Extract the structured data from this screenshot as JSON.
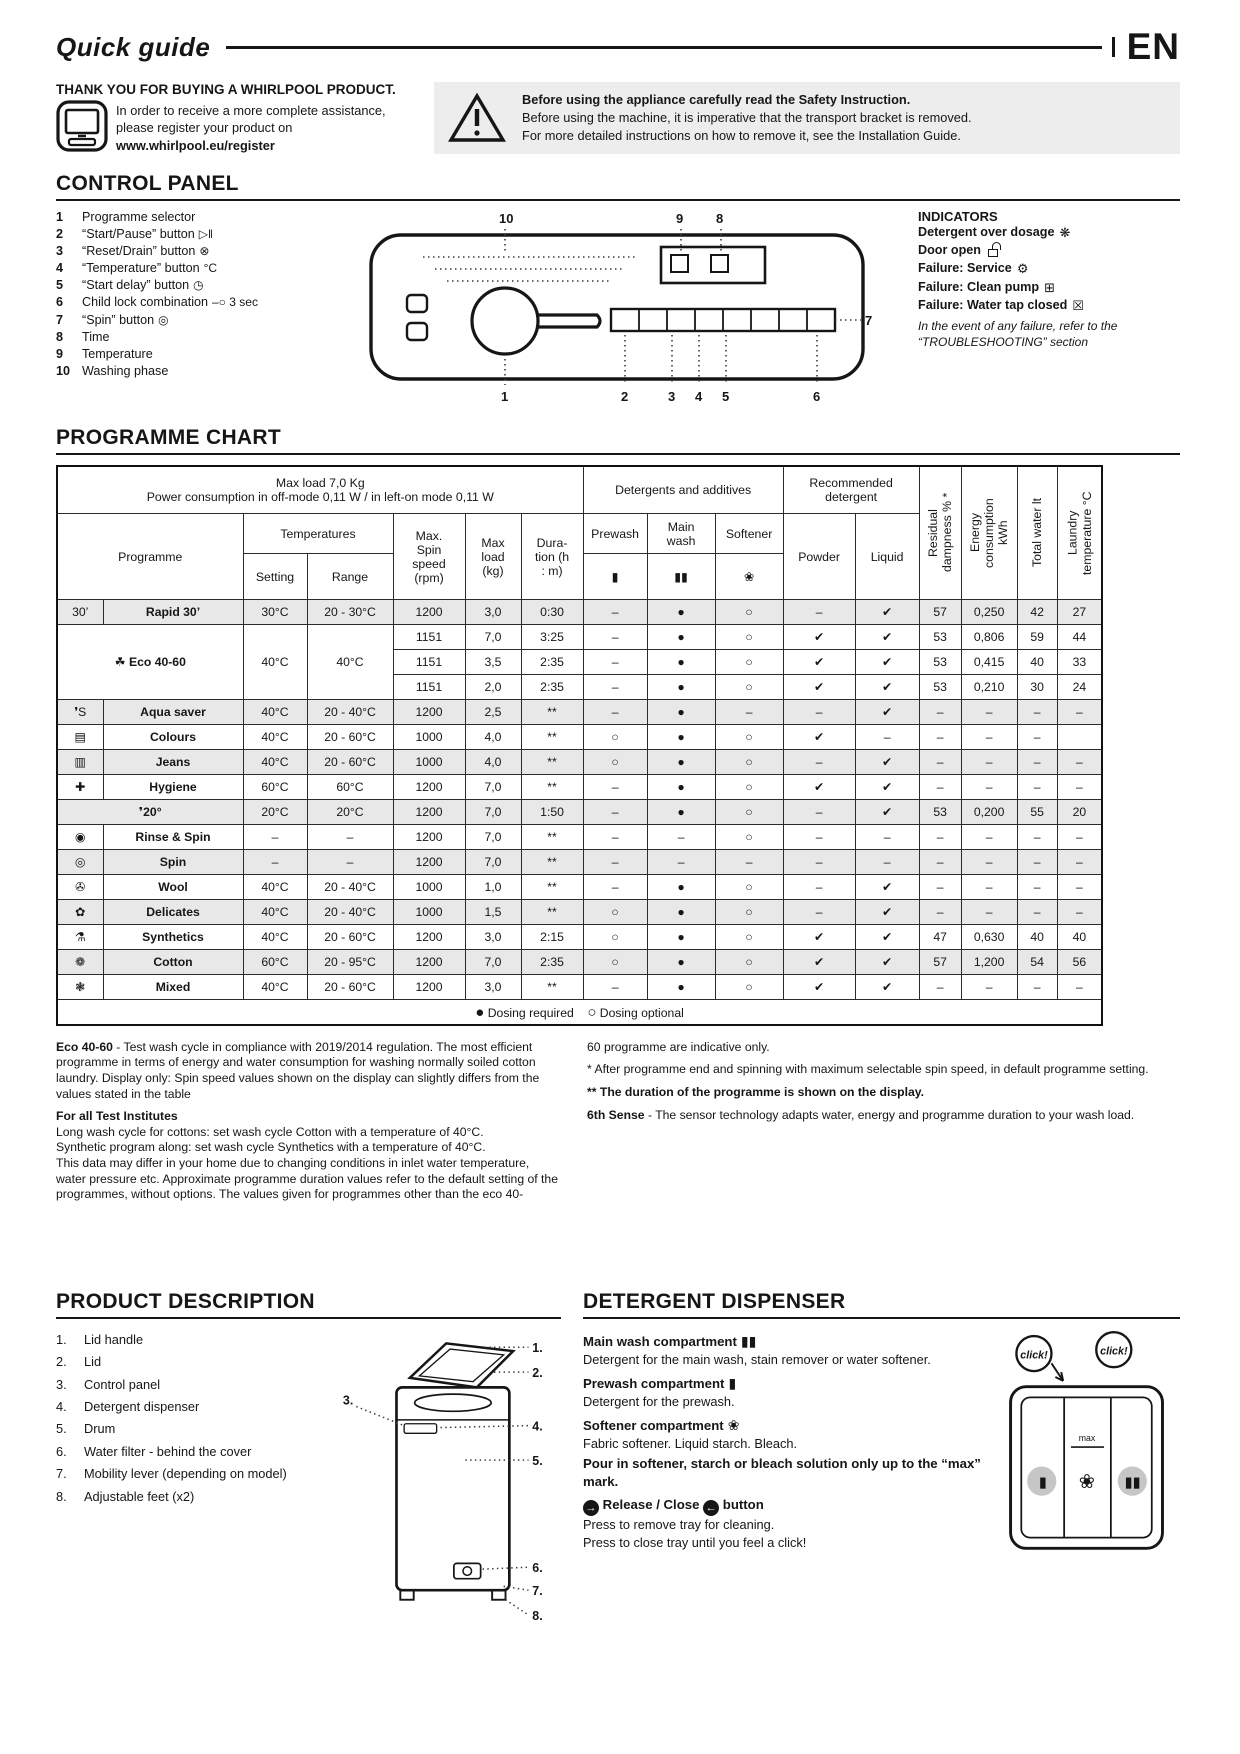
{
  "header": {
    "title": "Quick guide",
    "lang": "EN"
  },
  "intro": {
    "title": "THANK YOU FOR BUYING A WHIRLPOOL PRODUCT.",
    "line1": "In order to receive a more complete assistance,",
    "line2": "please register your product on",
    "url": "www.whirlpool.eu/register"
  },
  "warning": {
    "line1": "Before using the appliance carefully read the Safety Instruction.",
    "line2": "Before using the machine, it is imperative that the transport bracket is removed.",
    "line3": "For more detailed instructions on how to remove it, see the Installation Guide."
  },
  "control_panel": {
    "heading": "CONTROL PANEL",
    "items": [
      {
        "num": "1",
        "label": "Programme selector",
        "icon": ""
      },
      {
        "num": "2",
        "label": "“Start/Pause” button",
        "icon": "▷‖"
      },
      {
        "num": "3",
        "label": "“Reset/Drain” button",
        "icon": "⊗"
      },
      {
        "num": "4",
        "label": "“Temperature” button",
        "icon": "°C"
      },
      {
        "num": "5",
        "label": "“Start delay” button",
        "icon": "◷"
      },
      {
        "num": "6",
        "label": "Child lock combination",
        "icon": "–○ 3 sec"
      },
      {
        "num": "7",
        "label": "“Spin” button",
        "icon": "◎"
      },
      {
        "num": "8",
        "label": "Time",
        "icon": ""
      },
      {
        "num": "9",
        "label": "Temperature",
        "icon": ""
      },
      {
        "num": "10",
        "label": "Washing phase",
        "icon": ""
      }
    ],
    "callouts": [
      "1",
      "2",
      "3",
      "4",
      "5",
      "6",
      "7",
      "8",
      "9",
      "10"
    ],
    "indicators": {
      "heading": "INDICATORS",
      "items": [
        {
          "label": "Detergent over dosage",
          "icon": "❋"
        },
        {
          "label": "Door open",
          "icon": "LOCK"
        },
        {
          "label": "Failure: Service",
          "icon": "⚙"
        },
        {
          "label": "Failure: Clean pump",
          "icon": "⊞"
        },
        {
          "label": "Failure: Water tap closed",
          "icon": "☒"
        }
      ],
      "note1": "In the event of any failure, refer to the",
      "note2": "“TROUBLESHOOTING” section"
    }
  },
  "programme_chart": {
    "heading": "PROGRAMME CHART",
    "top_header_line1": "Max load 7,0 Kg",
    "top_header_line2": "Power consumption in off-mode 0,11 W / in left-on mode 0,11 W",
    "group_detergents": "Detergents and additives",
    "group_recommended": "Recommended\ndetergent",
    "col_programme": "Programme",
    "col_temperatures": "Temperatures",
    "col_setting": "Setting",
    "col_range": "Range",
    "col_spin": "Max.\nSpin\nspeed\n(rpm)",
    "col_load": "Max\nload\n(kg)",
    "col_duration": "Dura-\ntion (h\n: m)",
    "col_prewash": "Prewash",
    "col_main_wash": "Main\nwash",
    "col_softener": "Softener",
    "col_powder": "Powder",
    "col_liquid": "Liquid",
    "col_residual": "Residual\ndampness % *",
    "col_energy": "Energy\nconsumption\nkWh",
    "col_water": "Total water lt",
    "col_laundry": "Laundry\ntemperature °C",
    "icon_prewash": "▮",
    "icon_main_wash": "▮▮",
    "icon_softener": "❀",
    "legend_required": "Dosing required",
    "legend_optional": "Dosing optional",
    "rows": [
      {
        "icon": "30’",
        "icon_name": "rapid-30-icon",
        "name": "Rapid 30’",
        "shaded": true,
        "cells": [
          "30°C",
          "20 - 30°C",
          "1200",
          "3,0",
          "0:30",
          "–",
          "●",
          "○",
          "–",
          "✔",
          "57",
          "0,250",
          "42",
          "27"
        ]
      },
      {
        "group": true,
        "icon": "☘",
        "icon_name": "eco-40-60-icon",
        "name": "Eco 40-60",
        "setting": "40°C",
        "range": "40°C",
        "shaded": false,
        "subrows": [
          [
            "1151",
            "7,0",
            "3:25",
            "–",
            "●",
            "○",
            "✔",
            "✔",
            "53",
            "0,806",
            "59",
            "44"
          ],
          [
            "1151",
            "3,5",
            "2:35",
            "–",
            "●",
            "○",
            "✔",
            "✔",
            "53",
            "0,415",
            "40",
            "33"
          ],
          [
            "1151",
            "2,0",
            "2:35",
            "–",
            "●",
            "○",
            "✔",
            "✔",
            "53",
            "0,210",
            "30",
            "24"
          ]
        ]
      },
      {
        "icon": "❜S",
        "icon_name": "aqua-saver-icon",
        "name": "Aqua saver",
        "shaded": true,
        "cells": [
          "40°C",
          "20 - 40°C",
          "1200",
          "2,5",
          "**",
          "–",
          "●",
          "–",
          "–",
          "✔",
          "–",
          "–",
          "–",
          "–"
        ]
      },
      {
        "icon": "▤",
        "icon_name": "colours-icon",
        "name": "Colours",
        "shaded": false,
        "cells": [
          "40°C",
          "20 - 60°C",
          "1000",
          "4,0",
          "**",
          "○",
          "●",
          "○",
          "✔",
          "–",
          "–",
          "–",
          "–",
          ""
        ]
      },
      {
        "icon": "▥",
        "icon_name": "jeans-icon",
        "name": "Jeans",
        "shaded": true,
        "cells": [
          "40°C",
          "20 - 60°C",
          "1000",
          "4,0",
          "**",
          "○",
          "●",
          "○",
          "–",
          "✔",
          "–",
          "–",
          "–",
          "–"
        ]
      },
      {
        "icon": "✚",
        "icon_name": "hygiene-icon",
        "name": "Hygiene",
        "shaded": false,
        "cells": [
          "60°C",
          "60°C",
          "1200",
          "7,0",
          "**",
          "–",
          "●",
          "○",
          "✔",
          "✔",
          "–",
          "–",
          "–",
          "–"
        ]
      },
      {
        "merged": true,
        "icon": "❜",
        "icon_name": "temp-20-icon",
        "name": "20°",
        "shaded": true,
        "cells": [
          "20°C",
          "20°C",
          "1200",
          "7,0",
          "1:50",
          "–",
          "●",
          "○",
          "–",
          "✔",
          "53",
          "0,200",
          "55",
          "20"
        ]
      },
      {
        "icon": "◉",
        "icon_name": "rinse-spin-icon",
        "name": "Rinse & Spin",
        "shaded": false,
        "cells": [
          "–",
          "–",
          "1200",
          "7,0",
          "**",
          "–",
          "–",
          "○",
          "–",
          "–",
          "–",
          "–",
          "–",
          "–"
        ]
      },
      {
        "icon": "◎",
        "icon_name": "spin-icon",
        "name": "Spin",
        "shaded": true,
        "cells": [
          "–",
          "–",
          "1200",
          "7,0",
          "**",
          "–",
          "–",
          "–",
          "–",
          "–",
          "–",
          "–",
          "–",
          "–"
        ]
      },
      {
        "icon": "✇",
        "icon_name": "wool-icon",
        "name": "Wool",
        "shaded": false,
        "cells": [
          "40°C",
          "20 - 40°C",
          "1000",
          "1,0",
          "**",
          "–",
          "●",
          "○",
          "–",
          "✔",
          "–",
          "–",
          "–",
          "–"
        ]
      },
      {
        "icon": "✿",
        "icon_name": "delicates-icon",
        "name": "Delicates",
        "shaded": true,
        "cells": [
          "40°C",
          "20 - 40°C",
          "1000",
          "1,5",
          "**",
          "○",
          "●",
          "○",
          "–",
          "✔",
          "–",
          "–",
          "–",
          "–"
        ]
      },
      {
        "icon": "⚗",
        "icon_name": "synthetics-icon",
        "name": "Synthetics",
        "shaded": false,
        "cells": [
          "40°C",
          "20 - 60°C",
          "1200",
          "3,0",
          "2:15",
          "○",
          "●",
          "○",
          "✔",
          "✔",
          "47",
          "0,630",
          "40",
          "40"
        ]
      },
      {
        "icon": "❁",
        "icon_name": "cotton-icon",
        "name": "Cotton",
        "shaded": true,
        "cells": [
          "60°C",
          "20 - 95°C",
          "1200",
          "7,0",
          "2:35",
          "○",
          "●",
          "○",
          "✔",
          "✔",
          "57",
          "1,200",
          "54",
          "56"
        ]
      },
      {
        "icon": "❃",
        "icon_name": "mixed-icon",
        "name": "Mixed",
        "shaded": false,
        "cells": [
          "40°C",
          "20 - 60°C",
          "1200",
          "3,0",
          "**",
          "–",
          "●",
          "○",
          "✔",
          "✔",
          "–",
          "–",
          "–",
          "–"
        ]
      }
    ]
  },
  "footnotes": {
    "left": {
      "p1_bold": "Eco 40-60",
      "p1_rest": " - Test wash cycle in compliance with 2019/2014 regulation. The most efficient programme in terms of energy and water consumption for washing normally soiled cotton laundry. Display only: Spin speed values shown on the display can slightly differs from the values stated in the table",
      "p2": "For all Test Institutes",
      "p3": "Long wash cycle for cottons:  set wash cycle Cotton with a temperature of 40°C.",
      "p4": "Synthetic program along:  set wash cycle Synthetics with a temperature of 40°C.",
      "p5": "This data may differ in your home due to changing conditions in inlet water temperature, water pressure etc. Approximate programme duration values refer to the default setting of the programmes, without options. The values given for programmes other than the eco 40-"
    },
    "right": {
      "p1": "60 programme are indicative only.",
      "p2": "* After programme end and spinning with maximum selectable spin speed, in default programme setting.",
      "p3": "** The duration of the programme is shown on the display.",
      "p4_bold": "6th Sense",
      "p4_rest": " - The sensor technology adapts water, energy and programme duration to your wash load."
    }
  },
  "product_description": {
    "heading": "PRODUCT DESCRIPTION",
    "items": [
      "Lid handle",
      "Lid",
      "Control panel",
      "Detergent dispenser",
      "Drum",
      "Water filter - behind the cover",
      "Mobility lever (depending on model)",
      "Adjustable feet (x2)"
    ],
    "callouts": [
      "1.",
      "2.",
      "3.",
      "4.",
      "5.",
      "6.",
      "7.",
      "8."
    ]
  },
  "detergent_dispenser": {
    "heading": "DETERGENT DISPENSER",
    "main_label": "Main wash compartment",
    "main_icon": "▮▮",
    "main_text": "Detergent for the main wash, stain remover or water softener.",
    "prewash_label": "Prewash compartment",
    "prewash_icon": "▮",
    "prewash_text": "Detergent for the prewash.",
    "softener_label": "Softener compartment",
    "softener_icon": "❀",
    "softener_text": "Fabric softener. Liquid starch. Bleach.",
    "pour_note": "Pour in softener, starch or bleach  solution only up to the “max” mark.",
    "release_label": "Release / Close",
    "release_suffix": "button",
    "press_remove": "Press to remove tray for cleaning.",
    "press_close": "Press to close tray until you feel a click!",
    "click_badge": "click!",
    "max_label": "max"
  }
}
